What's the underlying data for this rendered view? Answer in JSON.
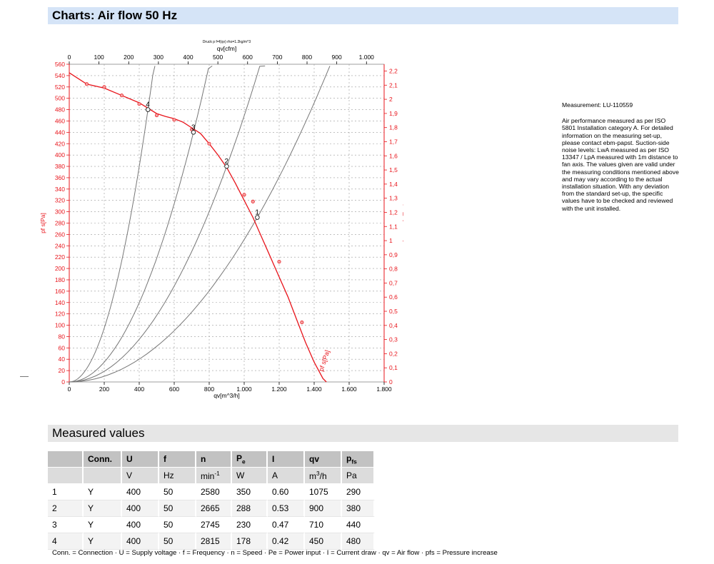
{
  "header": {
    "title": "Charts: Air flow 50 Hz",
    "measured_title": "Measured values"
  },
  "note": {
    "measurement": "Measurement: LU-110559",
    "text": "Air performance measured as per ISO 5801 Installation category A. For detailed information on the measuring set-up, please contact ebm-papst. Suction-side noise levels: LwA measured as per ISO 13347 / LpA measured with 1m distance to fan axis. The values given are valid under the measuring conditions mentioned above and may vary according to the actual installation situation. With any deviation from the standard set-up, the specific values have to be checked and reviewed with the unit installed."
  },
  "chart_data": {
    "type": "line",
    "title": "Druck p f=f(qv) rho=1.2kg/m^3",
    "xlabel": "qv[m^3/h]",
    "x2label": "qv[cfm]",
    "ylabel": "pf s[Pa]",
    "y2label": "pfs_E[in H2O]",
    "curve_label": "pf s[Pa]",
    "xlim": [
      0,
      1800
    ],
    "ylim": [
      0,
      560
    ],
    "x2lim": [
      0,
      1059.4
    ],
    "y2lim": [
      0,
      2.248
    ],
    "grid": true,
    "x_ticks": [
      "0",
      "200",
      "400",
      "600",
      "800",
      "1.000",
      "1.200",
      "1.400",
      "1.600",
      "1.800"
    ],
    "x_tick_values": [
      0,
      200,
      400,
      600,
      800,
      1000,
      1200,
      1400,
      1600,
      1800
    ],
    "x2_ticks": [
      "0",
      "100",
      "200",
      "300",
      "400",
      "500",
      "600",
      "700",
      "800",
      "900",
      "1.000"
    ],
    "x2_tick_values": [
      0,
      100,
      200,
      300,
      400,
      500,
      600,
      700,
      800,
      900,
      1000
    ],
    "y_ticks": [
      "0",
      "20",
      "40",
      "60",
      "80",
      "100",
      "120",
      "140",
      "160",
      "180",
      "200",
      "220",
      "240",
      "260",
      "280",
      "300",
      "320",
      "340",
      "360",
      "380",
      "400",
      "420",
      "440",
      "460",
      "480",
      "500",
      "520",
      "540",
      "560"
    ],
    "y_tick_values": [
      0,
      20,
      40,
      60,
      80,
      100,
      120,
      140,
      160,
      180,
      200,
      220,
      240,
      260,
      280,
      300,
      320,
      340,
      360,
      380,
      400,
      420,
      440,
      460,
      480,
      500,
      520,
      540,
      560
    ],
    "y2_ticks": [
      "0",
      "0,1",
      "0,2",
      "0,3",
      "0,4",
      "0,5",
      "0,6",
      "0,7",
      "0,8",
      "0,9",
      "1",
      "1,1",
      "1,2",
      "1,3",
      "1,4",
      "1,5",
      "1,6",
      "1,7",
      "1,8",
      "1,9",
      "2",
      "2,1",
      "2,2"
    ],
    "y2_tick_values": [
      0,
      0.1,
      0.2,
      0.3,
      0.4,
      0.5,
      0.6,
      0.7,
      0.8,
      0.9,
      1,
      1.1,
      1.2,
      1.3,
      1.4,
      1.5,
      1.6,
      1.7,
      1.8,
      1.9,
      2,
      2.1,
      2.2
    ],
    "series": [
      {
        "kind": "fan_curve",
        "color": "#e8141b",
        "x": [
          0,
          100,
          200,
          300,
          400,
          500,
          550,
          600,
          650,
          700,
          750,
          800,
          850,
          900,
          950,
          1000,
          1050,
          1100,
          1150,
          1200,
          1250,
          1300,
          1350,
          1400,
          1450,
          1470
        ],
        "y": [
          545,
          525,
          518,
          505,
          492,
          473,
          468,
          464,
          458,
          448,
          438,
          420,
          400,
          378,
          350,
          320,
          290,
          255,
          220,
          185,
          150,
          110,
          70,
          35,
          6,
          0
        ]
      },
      {
        "kind": "system_curve",
        "color": "#777777",
        "x": [
          0,
          1075,
          1490
        ],
        "y": [
          0,
          290,
          557
        ]
      },
      {
        "kind": "system_curve",
        "color": "#777777",
        "x": [
          0,
          900,
          1210
        ],
        "y": [
          0,
          380,
          557
        ]
      },
      {
        "kind": "system_curve",
        "color": "#777777",
        "x": [
          0,
          710,
          860
        ],
        "y": [
          0,
          440,
          557
        ]
      },
      {
        "kind": "system_curve",
        "color": "#777777",
        "x": [
          0,
          450,
          490
        ],
        "y": [
          0,
          480,
          557
        ]
      }
    ],
    "sample_points": {
      "x": [
        100,
        200,
        300,
        400,
        500,
        600,
        700,
        800,
        900,
        1000,
        1050,
        1200,
        1330
      ],
      "y": [
        525,
        520,
        505,
        490,
        470,
        462,
        445,
        420,
        380,
        330,
        318,
        212,
        105
      ]
    },
    "operating_points": [
      {
        "label": "1",
        "x": 1075,
        "y": 290
      },
      {
        "label": "2",
        "x": 900,
        "y": 380
      },
      {
        "label": "3",
        "x": 710,
        "y": 440
      },
      {
        "label": "4",
        "x": 450,
        "y": 480
      }
    ]
  },
  "table": {
    "head1": [
      "",
      "Conn.",
      "U",
      "f",
      "n",
      "Pe",
      "I",
      "qv",
      "pfs"
    ],
    "head2": [
      "",
      "",
      "V",
      "Hz",
      "min-1",
      "W",
      "A",
      "m3/h",
      "Pa"
    ],
    "rows": [
      [
        "1",
        "Y",
        "400",
        "50",
        "2580",
        "350",
        "0.60",
        "1075",
        "290"
      ],
      [
        "2",
        "Y",
        "400",
        "50",
        "2665",
        "288",
        "0.53",
        "900",
        "380"
      ],
      [
        "3",
        "Y",
        "400",
        "50",
        "2745",
        "230",
        "0.47",
        "710",
        "440"
      ],
      [
        "4",
        "Y",
        "400",
        "50",
        "2815",
        "178",
        "0.42",
        "450",
        "480"
      ]
    ]
  },
  "legend": "Conn. = Connection · U = Supply voltage · f = Frequency · n = Speed · Pe = Power input · I = Current draw · qv = Air flow · pfs = Pressure increase"
}
